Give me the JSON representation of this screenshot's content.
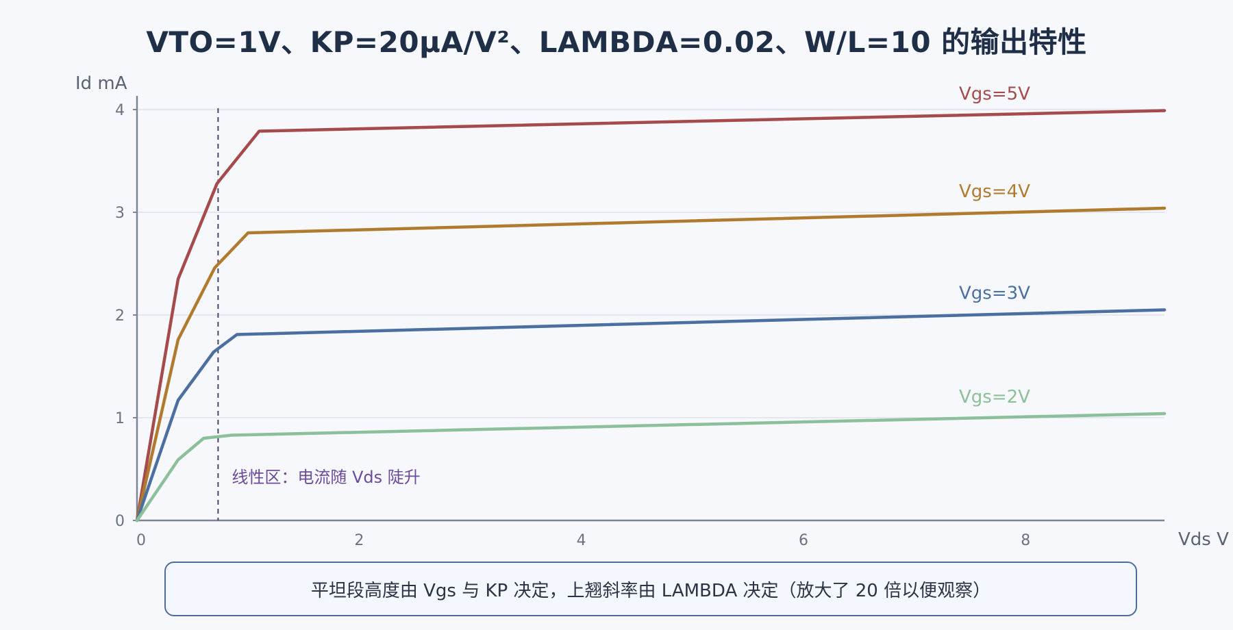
{
  "chart_data": {
    "type": "line",
    "title": "VTO=1V、KP=20μA/V²、LAMBDA=0.02、W/L=10 的输出特性",
    "xlabel": "Vds V",
    "ylabel": "Id mA",
    "xlim": [
      0,
      9.25
    ],
    "ylim": [
      0,
      4
    ],
    "xticks": [
      0,
      2,
      4,
      6,
      8
    ],
    "yticks": [
      0,
      1,
      2,
      3,
      4
    ],
    "grid": "horizontal",
    "series": [
      {
        "name": "Vgs=5V",
        "color": "#a54b4b",
        "x": [
          0,
          0.37,
          0.72,
          1.1,
          9.25
        ],
        "y": [
          0,
          2.35,
          3.28,
          3.79,
          3.99
        ]
      },
      {
        "name": "Vgs=4V",
        "color": "#b07b2e",
        "x": [
          0,
          0.37,
          0.7,
          1.0,
          9.25
        ],
        "y": [
          0,
          1.76,
          2.46,
          2.8,
          3.04
        ]
      },
      {
        "name": "Vgs=3V",
        "color": "#4a6fa0",
        "x": [
          0,
          0.37,
          0.69,
          0.9,
          9.25
        ],
        "y": [
          0,
          1.17,
          1.64,
          1.81,
          2.05
        ]
      },
      {
        "name": "Vgs=2V",
        "color": "#8cc09a",
        "x": [
          0,
          0.37,
          0.6,
          0.85,
          9.25
        ],
        "y": [
          0,
          0.59,
          0.8,
          0.83,
          1.04
        ]
      }
    ],
    "annotations": [
      {
        "type": "vline",
        "x": 0.73,
        "style": "dashed",
        "color": "#4b4466",
        "text": "线性区：电流随 Vds 陡升",
        "text_y": 0.42,
        "text_color": "#6b4c9a"
      }
    ],
    "legend": "inline labels at right end of each line"
  },
  "note": "平坦段高度由 Vgs 与 KP 决定，上翘斜率由 LAMBDA 决定（放大了 20 倍以便观察）"
}
